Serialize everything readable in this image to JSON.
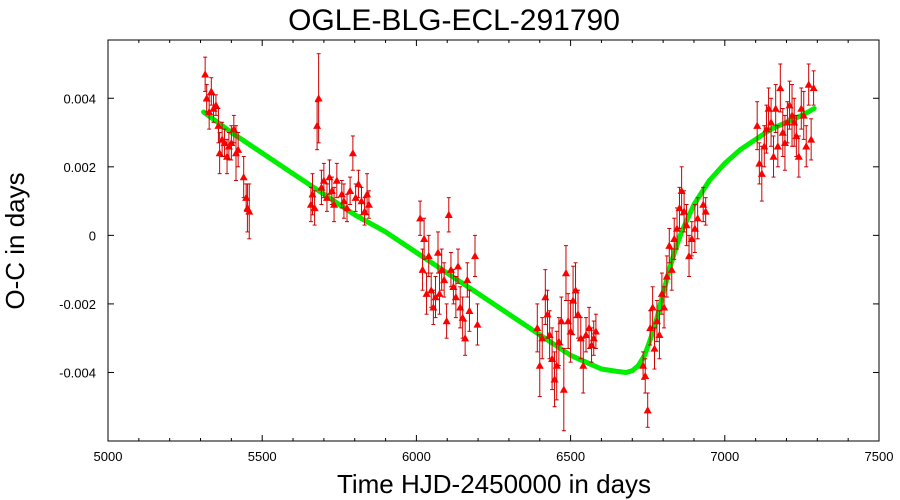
{
  "chart_data": {
    "type": "scatter",
    "title": "OGLE-BLG-ECL-291790",
    "xlabel": "Time HJD-2450000 in days",
    "ylabel": "O-C in days",
    "xlim": [
      5000,
      7500
    ],
    "ylim": [
      -0.006,
      0.0057
    ],
    "x_ticks": [
      5000,
      5500,
      6000,
      6500,
      7000,
      7500
    ],
    "x_tick_labels": [
      "5000",
      "5500",
      "6000",
      "6500",
      "7000",
      "7500"
    ],
    "y_ticks": [
      -0.004,
      -0.002,
      0,
      0.002,
      0.004
    ],
    "y_tick_labels": [
      "-0.004",
      "-0.002",
      "0",
      "0.002",
      "0.004"
    ],
    "grid": false,
    "colors": {
      "points": "#ff0000",
      "errorbars": "#cc0000",
      "model": "#00ee00"
    },
    "series": [
      {
        "kind": "points-with-errorbars",
        "points": [
          {
            "x": 5315,
            "y": 0.0047,
            "err": 0.0005
          },
          {
            "x": 5320,
            "y": 0.004,
            "err": 0.0004
          },
          {
            "x": 5328,
            "y": 0.0036,
            "err": 0.0005
          },
          {
            "x": 5335,
            "y": 0.0042,
            "err": 0.0004
          },
          {
            "x": 5342,
            "y": 0.0037,
            "err": 0.0004
          },
          {
            "x": 5350,
            "y": 0.0038,
            "err": 0.0003
          },
          {
            "x": 5358,
            "y": 0.0032,
            "err": 0.0005
          },
          {
            "x": 5362,
            "y": 0.0024,
            "err": 0.0006
          },
          {
            "x": 5370,
            "y": 0.0028,
            "err": 0.0005
          },
          {
            "x": 5378,
            "y": 0.0027,
            "err": 0.0004
          },
          {
            "x": 5386,
            "y": 0.0023,
            "err": 0.0005
          },
          {
            "x": 5392,
            "y": 0.0026,
            "err": 0.0004
          },
          {
            "x": 5400,
            "y": 0.0027,
            "err": 0.0005
          },
          {
            "x": 5408,
            "y": 0.0031,
            "err": 0.0004
          },
          {
            "x": 5415,
            "y": 0.0024,
            "err": 0.0008
          },
          {
            "x": 5422,
            "y": 0.0025,
            "err": 0.0005
          },
          {
            "x": 5440,
            "y": 0.0017,
            "err": 0.0006
          },
          {
            "x": 5448,
            "y": 0.0011,
            "err": 0.0004
          },
          {
            "x": 5452,
            "y": 0.0008,
            "err": 0.0007
          },
          {
            "x": 5458,
            "y": 0.0007,
            "err": 0.0008
          },
          {
            "x": 5658,
            "y": 0.0009,
            "err": 0.0005
          },
          {
            "x": 5663,
            "y": 0.0012,
            "err": 0.0006
          },
          {
            "x": 5670,
            "y": 0.0008,
            "err": 0.0005
          },
          {
            "x": 5678,
            "y": 0.0032,
            "err": 0.0007
          },
          {
            "x": 5683,
            "y": 0.004,
            "err": 0.0013
          },
          {
            "x": 5692,
            "y": 0.0014,
            "err": 0.0005
          },
          {
            "x": 5700,
            "y": 0.0016,
            "err": 0.0005
          },
          {
            "x": 5710,
            "y": 0.0011,
            "err": 0.0004
          },
          {
            "x": 5718,
            "y": 0.0017,
            "err": 0.0005
          },
          {
            "x": 5726,
            "y": 0.0013,
            "err": 0.0004
          },
          {
            "x": 5733,
            "y": 0.0009,
            "err": 0.0005
          },
          {
            "x": 5742,
            "y": 0.0016,
            "err": 0.0005
          },
          {
            "x": 5758,
            "y": 0.0012,
            "err": 0.0004
          },
          {
            "x": 5765,
            "y": 0.001,
            "err": 0.0005
          },
          {
            "x": 5775,
            "y": 0.0008,
            "err": 0.0004
          },
          {
            "x": 5785,
            "y": 0.0013,
            "err": 0.0004
          },
          {
            "x": 5794,
            "y": 0.0024,
            "err": 0.0005
          },
          {
            "x": 5803,
            "y": 0.0011,
            "err": 0.0004
          },
          {
            "x": 5812,
            "y": 0.0015,
            "err": 0.0004
          },
          {
            "x": 5822,
            "y": 0.001,
            "err": 0.0004
          },
          {
            "x": 5832,
            "y": 0.0007,
            "err": 0.0004
          },
          {
            "x": 5840,
            "y": 0.0012,
            "err": 0.0006
          },
          {
            "x": 5846,
            "y": 0.0009,
            "err": 0.0004
          },
          {
            "x": 6012,
            "y": 0.0005,
            "err": 0.0005
          },
          {
            "x": 6020,
            "y": -0.001,
            "err": 0.0006
          },
          {
            "x": 6025,
            "y": -0.0001,
            "err": 0.0006
          },
          {
            "x": 6033,
            "y": -0.0017,
            "err": 0.0006
          },
          {
            "x": 6040,
            "y": -0.0006,
            "err": 0.0006
          },
          {
            "x": 6048,
            "y": -0.0016,
            "err": 0.0005
          },
          {
            "x": 6055,
            "y": -0.0021,
            "err": 0.0005
          },
          {
            "x": 6062,
            "y": -0.0018,
            "err": 0.0006
          },
          {
            "x": 6070,
            "y": -0.0005,
            "err": 0.0006
          },
          {
            "x": 6075,
            "y": -0.0017,
            "err": 0.0006
          },
          {
            "x": 6082,
            "y": -0.001,
            "err": 0.0006
          },
          {
            "x": 6090,
            "y": -0.0013,
            "err": 0.0005
          },
          {
            "x": 6098,
            "y": -0.0025,
            "err": 0.0005
          },
          {
            "x": 6105,
            "y": 0.0006,
            "err": 0.0005
          },
          {
            "x": 6112,
            "y": -0.001,
            "err": 0.0005
          },
          {
            "x": 6120,
            "y": -0.0015,
            "err": 0.0005
          },
          {
            "x": 6128,
            "y": -0.0018,
            "err": 0.0006
          },
          {
            "x": 6135,
            "y": -0.0009,
            "err": 0.0005
          },
          {
            "x": 6142,
            "y": -0.0021,
            "err": 0.0006
          },
          {
            "x": 6150,
            "y": -0.0024,
            "err": 0.0006
          },
          {
            "x": 6158,
            "y": -0.003,
            "err": 0.0005
          },
          {
            "x": 6165,
            "y": -0.0013,
            "err": 0.0005
          },
          {
            "x": 6172,
            "y": -0.0022,
            "err": 0.0006
          },
          {
            "x": 6190,
            "y": -0.0006,
            "err": 0.0006
          },
          {
            "x": 6198,
            "y": -0.0026,
            "err": 0.0006
          },
          {
            "x": 6392,
            "y": -0.0027,
            "err": 0.0007
          },
          {
            "x": 6400,
            "y": -0.0038,
            "err": 0.0009
          },
          {
            "x": 6408,
            "y": -0.003,
            "err": 0.0006
          },
          {
            "x": 6418,
            "y": -0.0018,
            "err": 0.0008
          },
          {
            "x": 6425,
            "y": -0.0023,
            "err": 0.0007
          },
          {
            "x": 6432,
            "y": -0.0029,
            "err": 0.0007
          },
          {
            "x": 6440,
            "y": -0.0036,
            "err": 0.0009
          },
          {
            "x": 6448,
            "y": -0.0042,
            "err": 0.0008
          },
          {
            "x": 6455,
            "y": -0.0038,
            "err": 0.001
          },
          {
            "x": 6462,
            "y": -0.0031,
            "err": 0.0007
          },
          {
            "x": 6470,
            "y": -0.0025,
            "err": 0.0007
          },
          {
            "x": 6478,
            "y": -0.0045,
            "err": 0.0012
          },
          {
            "x": 6485,
            "y": -0.0011,
            "err": 0.0008
          },
          {
            "x": 6492,
            "y": -0.0025,
            "err": 0.0008
          },
          {
            "x": 6500,
            "y": -0.0028,
            "err": 0.0009
          },
          {
            "x": 6508,
            "y": -0.0019,
            "err": 0.001
          },
          {
            "x": 6516,
            "y": -0.0016,
            "err": 0.0008
          },
          {
            "x": 6524,
            "y": -0.0023,
            "err": 0.0007
          },
          {
            "x": 6533,
            "y": -0.003,
            "err": 0.0006
          },
          {
            "x": 6541,
            "y": -0.0038,
            "err": 0.0008
          },
          {
            "x": 6550,
            "y": -0.0029,
            "err": 0.0005
          },
          {
            "x": 6560,
            "y": -0.0027,
            "err": 0.0006
          },
          {
            "x": 6568,
            "y": -0.0032,
            "err": 0.0005
          },
          {
            "x": 6575,
            "y": -0.003,
            "err": 0.0005
          },
          {
            "x": 6582,
            "y": -0.0028,
            "err": 0.0005
          },
          {
            "x": 6735,
            "y": -0.0038,
            "err": 0.0004
          },
          {
            "x": 6742,
            "y": -0.0041,
            "err": 0.0005
          },
          {
            "x": 6750,
            "y": -0.0051,
            "err": 0.0005
          },
          {
            "x": 6758,
            "y": -0.0027,
            "err": 0.0005
          },
          {
            "x": 6766,
            "y": -0.0021,
            "err": 0.0006
          },
          {
            "x": 6772,
            "y": -0.0033,
            "err": 0.0006
          },
          {
            "x": 6780,
            "y": -0.0025,
            "err": 0.0006
          },
          {
            "x": 6788,
            "y": -0.0029,
            "err": 0.0007
          },
          {
            "x": 6796,
            "y": -0.0017,
            "err": 0.0006
          },
          {
            "x": 6803,
            "y": -0.0021,
            "err": 0.0006
          },
          {
            "x": 6812,
            "y": -0.0012,
            "err": 0.0006
          },
          {
            "x": 6820,
            "y": -0.0003,
            "err": 0.0005
          },
          {
            "x": 6828,
            "y": -0.001,
            "err": 0.0006
          },
          {
            "x": 6836,
            "y": -0.0001,
            "err": 0.0006
          },
          {
            "x": 6845,
            "y": 0.0002,
            "err": 0.0006
          },
          {
            "x": 6853,
            "y": 0.0008,
            "err": 0.0006
          },
          {
            "x": 6860,
            "y": 0.0013,
            "err": 0.0007
          },
          {
            "x": 6868,
            "y": 0.0007,
            "err": 0.0006
          },
          {
            "x": 6876,
            "y": 0.0003,
            "err": 0.0006
          },
          {
            "x": 6884,
            "y": -0.0006,
            "err": 0.0006
          },
          {
            "x": 6893,
            "y": -0.0001,
            "err": 0.0005
          },
          {
            "x": 6903,
            "y": 0.0002,
            "err": 0.0007
          },
          {
            "x": 6912,
            "y": 0.0005,
            "err": 0.0006
          },
          {
            "x": 6930,
            "y": 0.0009,
            "err": 0.0005
          },
          {
            "x": 6938,
            "y": 0.0007,
            "err": 0.0004
          },
          {
            "x": 7105,
            "y": 0.0032,
            "err": 0.0007
          },
          {
            "x": 7112,
            "y": 0.0021,
            "err": 0.0006
          },
          {
            "x": 7120,
            "y": 0.0018,
            "err": 0.0008
          },
          {
            "x": 7128,
            "y": 0.0026,
            "err": 0.0006
          },
          {
            "x": 7135,
            "y": 0.0031,
            "err": 0.0007
          },
          {
            "x": 7142,
            "y": 0.0037,
            "err": 0.0006
          },
          {
            "x": 7150,
            "y": 0.0033,
            "err": 0.0007
          },
          {
            "x": 7158,
            "y": 0.0023,
            "err": 0.0006
          },
          {
            "x": 7165,
            "y": 0.0037,
            "err": 0.0007
          },
          {
            "x": 7172,
            "y": 0.0026,
            "err": 0.0006
          },
          {
            "x": 7180,
            "y": 0.0043,
            "err": 0.0007
          },
          {
            "x": 7188,
            "y": 0.003,
            "err": 0.0007
          },
          {
            "x": 7195,
            "y": 0.0027,
            "err": 0.0008
          },
          {
            "x": 7203,
            "y": 0.0033,
            "err": 0.0006
          },
          {
            "x": 7210,
            "y": 0.0038,
            "err": 0.0007
          },
          {
            "x": 7218,
            "y": 0.0035,
            "err": 0.0009
          },
          {
            "x": 7225,
            "y": 0.0033,
            "err": 0.0007
          },
          {
            "x": 7232,
            "y": 0.0029,
            "err": 0.0006
          },
          {
            "x": 7240,
            "y": 0.0023,
            "err": 0.0006
          },
          {
            "x": 7248,
            "y": 0.0037,
            "err": 0.0006
          },
          {
            "x": 7256,
            "y": 0.0035,
            "err": 0.0007
          },
          {
            "x": 7264,
            "y": 0.0026,
            "err": 0.0006
          },
          {
            "x": 7272,
            "y": 0.0044,
            "err": 0.0006
          },
          {
            "x": 7280,
            "y": 0.0028,
            "err": 0.0006
          },
          {
            "x": 7288,
            "y": 0.0043,
            "err": 0.0005
          }
        ]
      },
      {
        "kind": "model-curve",
        "x": [
          5310,
          5400,
          5500,
          5600,
          5700,
          5800,
          5900,
          6000,
          6100,
          6200,
          6300,
          6400,
          6500,
          6550,
          6600,
          6650,
          6680,
          6700,
          6720,
          6740,
          6760,
          6780,
          6800,
          6820,
          6840,
          6860,
          6880,
          6900,
          6950,
          7000,
          7050,
          7100,
          7150,
          7200,
          7250,
          7290
        ],
        "y": [
          0.0036,
          0.003,
          0.0024,
          0.0018,
          0.0012,
          0.0006,
          0.0001,
          -0.0005,
          -0.0011,
          -0.0017,
          -0.0023,
          -0.0029,
          -0.0035,
          -0.0037,
          -0.0039,
          -0.00397,
          -0.004,
          -0.00395,
          -0.0038,
          -0.0035,
          -0.003,
          -0.0024,
          -0.0017,
          -0.001,
          -0.0004,
          0.0001,
          0.0005,
          0.0009,
          0.0016,
          0.0021,
          0.0025,
          0.0028,
          0.0031,
          0.0033,
          0.0035,
          0.0037
        ]
      }
    ]
  }
}
